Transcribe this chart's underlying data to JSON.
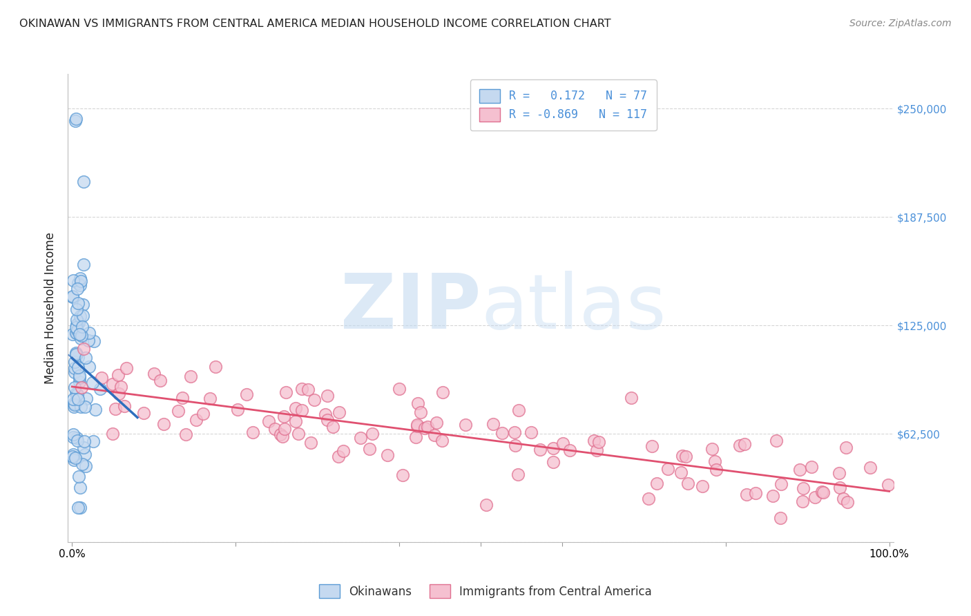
{
  "title": "OKINAWAN VS IMMIGRANTS FROM CENTRAL AMERICA MEDIAN HOUSEHOLD INCOME CORRELATION CHART",
  "source": "Source: ZipAtlas.com",
  "ylabel": "Median Household Income",
  "y_ticks": [
    0,
    62500,
    125000,
    187500,
    250000
  ],
  "right_tick_labels": [
    "$62,500",
    "$125,000",
    "$187,500",
    "$250,000"
  ],
  "blue_face_color": "#c5d9f0",
  "blue_edge_color": "#5b9bd5",
  "blue_line_color": "#2e6fbe",
  "pink_face_color": "#f5c0d0",
  "pink_edge_color": "#e07090",
  "pink_line_color": "#e05070",
  "background_color": "#ffffff",
  "grid_color": "#cccccc",
  "title_color": "#222222",
  "right_tick_color": "#4a90d9",
  "watermark_zip_color": "#c0d8f0",
  "watermark_atlas_color": "#c0d8f0",
  "blue_R": 0.172,
  "blue_N": 77,
  "pink_R": -0.869,
  "pink_N": 117,
  "xmin": 0.0,
  "xmax": 1.0,
  "ymin": 0,
  "ymax": 270000,
  "blue_seed": 99,
  "pink_seed": 77,
  "legend_labels_bottom": [
    "Okinawans",
    "Immigrants from Central America"
  ]
}
